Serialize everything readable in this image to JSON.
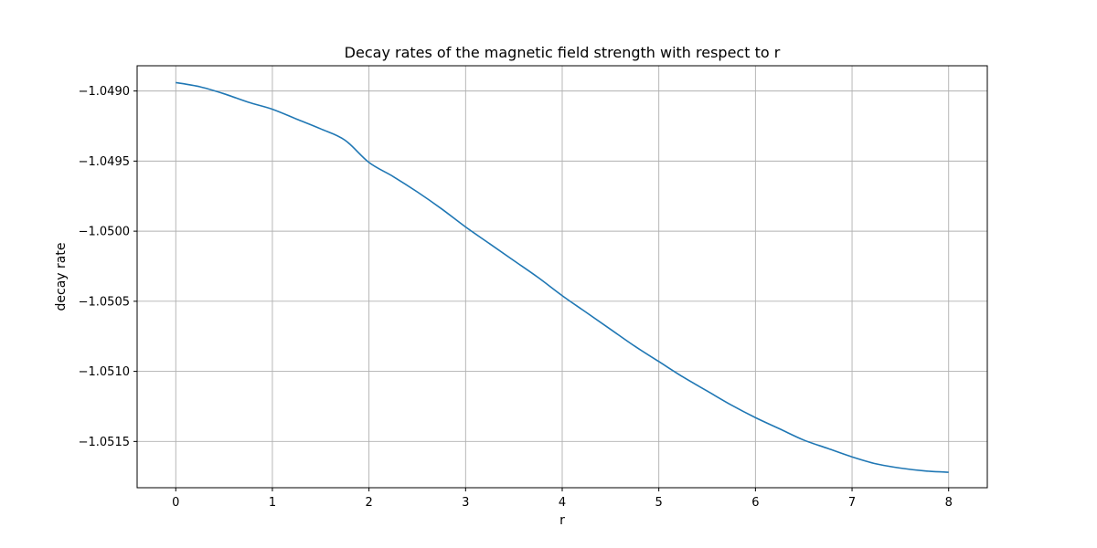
{
  "chart_data": {
    "type": "line",
    "title": "Decay rates of the magnetic field strength with respect to r",
    "xlabel": "r",
    "ylabel": "decay rate",
    "xlim": [
      -0.4,
      8.4
    ],
    "ylim": [
      -1.05183,
      -1.04882
    ],
    "xticks": [
      0,
      1,
      2,
      3,
      4,
      5,
      6,
      7,
      8
    ],
    "xtick_labels": [
      "0",
      "1",
      "2",
      "3",
      "4",
      "5",
      "6",
      "7",
      "8"
    ],
    "yticks": [
      -1.049,
      -1.0495,
      -1.05,
      -1.0505,
      -1.051,
      -1.0515
    ],
    "ytick_labels": [
      "−1.0490",
      "−1.0495",
      "−1.0500",
      "−1.0505",
      "−1.0510",
      "−1.0515"
    ],
    "grid": true,
    "series": [
      {
        "color": "#1f77b4",
        "x": [
          0,
          0.25,
          0.5,
          0.75,
          1,
          1.25,
          1.5,
          1.75,
          2,
          2.25,
          2.5,
          2.75,
          3,
          3.25,
          3.5,
          3.75,
          4,
          4.25,
          4.5,
          4.75,
          5,
          5.25,
          5.5,
          5.75,
          6,
          6.25,
          6.5,
          6.75,
          7,
          7.25,
          7.5,
          7.75,
          8
        ],
        "y": [
          -1.04894,
          -1.04897,
          -1.04902,
          -1.04908,
          -1.04913,
          -1.0492,
          -1.04927,
          -1.04935,
          -1.04951,
          -1.04961,
          -1.04972,
          -1.04984,
          -1.04997,
          -1.05009,
          -1.05021,
          -1.05033,
          -1.05046,
          -1.05058,
          -1.0507,
          -1.05082,
          -1.05093,
          -1.05104,
          -1.05114,
          -1.05124,
          -1.05133,
          -1.05141,
          -1.05149,
          -1.05155,
          -1.05161,
          -1.05166,
          -1.05169,
          -1.05171,
          -1.05172
        ]
      }
    ]
  }
}
